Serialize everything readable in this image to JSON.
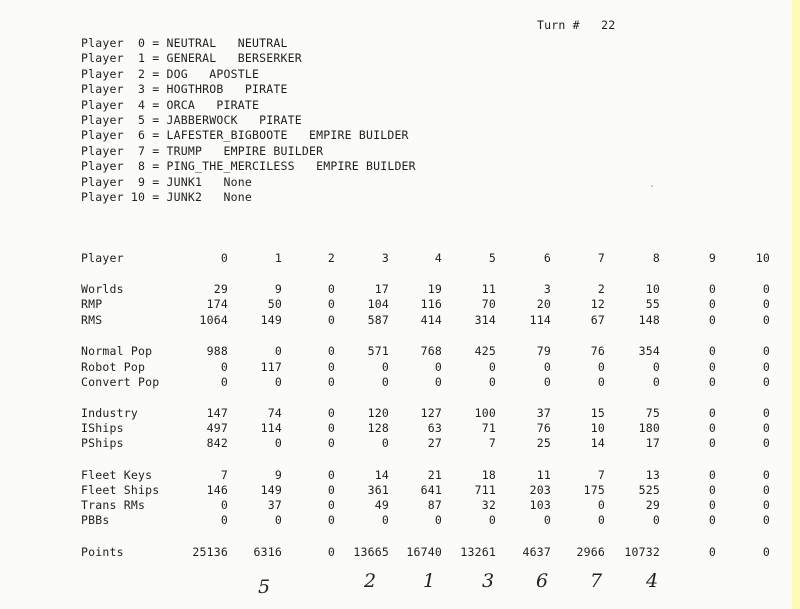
{
  "header": {
    "turn_label": "Turn #",
    "turn_value": "22"
  },
  "player_list": [
    "Player  0 = NEUTRAL   NEUTRAL",
    "Player  1 = GENERAL   BERSERKER",
    "Player  2 = DOG   APOSTLE",
    "Player  3 = HOGTHROB   PIRATE",
    "Player  4 = ORCA   PIRATE",
    "Player  5 = JABBERWOCK   PIRATE",
    "Player  6 = LAFESTER_BIGBOOTE   EMPIRE BUILDER",
    "Player  7 = TRUMP   EMPIRE BUILDER",
    "Player  8 = PING_THE_MERCILESS   EMPIRE BUILDER",
    "Player  9 = JUNK1   None",
    "Player 10 = JUNK2   None"
  ],
  "stats": {
    "header_label": "Player",
    "columns": [
      "0",
      "1",
      "2",
      "3",
      "4",
      "5",
      "6",
      "7",
      "8",
      "9",
      "10"
    ],
    "rows": [
      {
        "label": "Worlds",
        "values": [
          "29",
          "9",
          "0",
          "17",
          "19",
          "11",
          "3",
          "2",
          "10",
          "0",
          "0"
        ]
      },
      {
        "label": "RMP",
        "values": [
          "174",
          "50",
          "0",
          "104",
          "116",
          "70",
          "20",
          "12",
          "55",
          "0",
          "0"
        ]
      },
      {
        "label": "RMS",
        "values": [
          "1064",
          "149",
          "0",
          "587",
          "414",
          "314",
          "114",
          "67",
          "148",
          "0",
          "0"
        ]
      },
      {
        "label": "Normal Pop",
        "values": [
          "988",
          "0",
          "0",
          "571",
          "768",
          "425",
          "79",
          "76",
          "354",
          "0",
          "0"
        ]
      },
      {
        "label": "Robot Pop",
        "values": [
          "0",
          "117",
          "0",
          "0",
          "0",
          "0",
          "0",
          "0",
          "0",
          "0",
          "0"
        ]
      },
      {
        "label": "Convert Pop",
        "values": [
          "0",
          "0",
          "0",
          "0",
          "0",
          "0",
          "0",
          "0",
          "0",
          "0",
          "0"
        ]
      },
      {
        "label": "Industry",
        "values": [
          "147",
          "74",
          "0",
          "120",
          "127",
          "100",
          "37",
          "15",
          "75",
          "0",
          "0"
        ]
      },
      {
        "label": "IShips",
        "values": [
          "497",
          "114",
          "0",
          "128",
          "63",
          "71",
          "76",
          "10",
          "180",
          "0",
          "0"
        ]
      },
      {
        "label": "PShips",
        "values": [
          "842",
          "0",
          "0",
          "0",
          "27",
          "7",
          "25",
          "14",
          "17",
          "0",
          "0"
        ]
      },
      {
        "label": "Fleet Keys",
        "values": [
          "7",
          "9",
          "0",
          "14",
          "21",
          "18",
          "11",
          "7",
          "13",
          "0",
          "0"
        ]
      },
      {
        "label": "Fleet Ships",
        "values": [
          "146",
          "149",
          "0",
          "361",
          "641",
          "711",
          "203",
          "175",
          "525",
          "0",
          "0"
        ]
      },
      {
        "label": "Trans RMs",
        "values": [
          "0",
          "37",
          "0",
          "49",
          "87",
          "32",
          "103",
          "0",
          "29",
          "0",
          "0"
        ]
      },
      {
        "label": "PBBs",
        "values": [
          "0",
          "0",
          "0",
          "0",
          "0",
          "0",
          "0",
          "0",
          "0",
          "0",
          "0"
        ]
      },
      {
        "label": "Points",
        "values": [
          "25136",
          "6316",
          "0",
          "13665",
          "16740",
          "13261",
          "4637",
          "2966",
          "10732",
          "0",
          "0"
        ]
      }
    ]
  },
  "handwritten_ranks": [
    "5",
    "2",
    "1",
    "3",
    "6",
    "7",
    "4"
  ]
}
